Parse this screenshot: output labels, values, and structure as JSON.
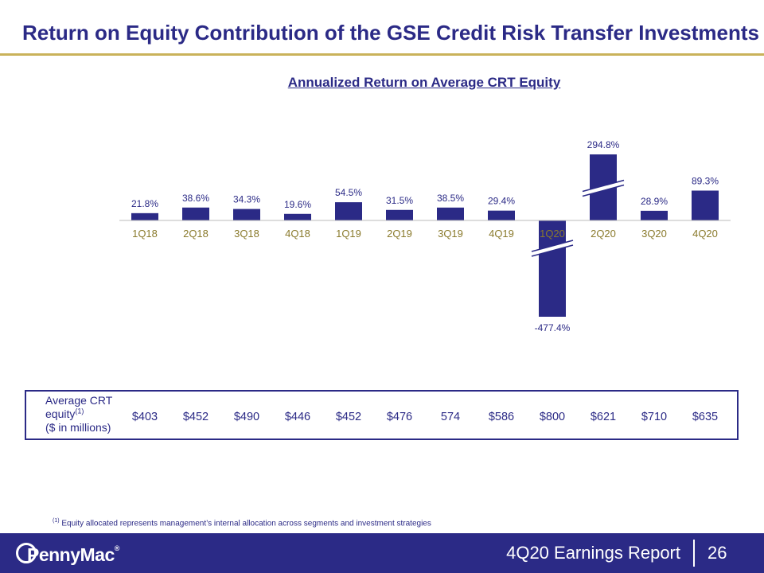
{
  "slide": {
    "title": "Return on Equity Contribution of the GSE Credit Risk Transfer Investments"
  },
  "chart_data": {
    "type": "bar",
    "title": "Annualized Return on Average CRT Equity",
    "categories": [
      "1Q18",
      "2Q18",
      "3Q18",
      "4Q18",
      "1Q19",
      "2Q19",
      "3Q19",
      "4Q19",
      "1Q20",
      "2Q20",
      "3Q20",
      "4Q20"
    ],
    "values": [
      21.8,
      38.6,
      34.3,
      19.6,
      54.5,
      31.5,
      38.5,
      29.4,
      -477.4,
      294.8,
      28.9,
      89.3
    ],
    "value_labels": [
      "21.8%",
      "38.6%",
      "34.3%",
      "19.6%",
      "54.5%",
      "31.5%",
      "38.5%",
      "29.4%",
      "-477.4%",
      "294.8%",
      "28.9%",
      "89.3%"
    ],
    "axis_breaks": [
      "1Q20",
      "2Q20"
    ],
    "grid": false,
    "legend": "none",
    "bar_color": "#2b2a86",
    "tick_label_color": "#8a7a2c"
  },
  "equity": {
    "label_line1": "Average CRT",
    "label_line2": "equity",
    "label_sup": "(1)",
    "label_line3": "($ in millions)",
    "values": [
      "$403",
      "$452",
      "$490",
      "$446",
      "$452",
      "$476",
      "574",
      "$586",
      "$800",
      "$621",
      "$710",
      "$635"
    ]
  },
  "footnote": {
    "marker": "(1)",
    "text": "Equity allocated represents management’s internal allocation across segments and investment strategies"
  },
  "footer": {
    "brand": "PennyMac",
    "brand_mark": "®",
    "report": "4Q20 Earnings Report",
    "page": "26"
  }
}
